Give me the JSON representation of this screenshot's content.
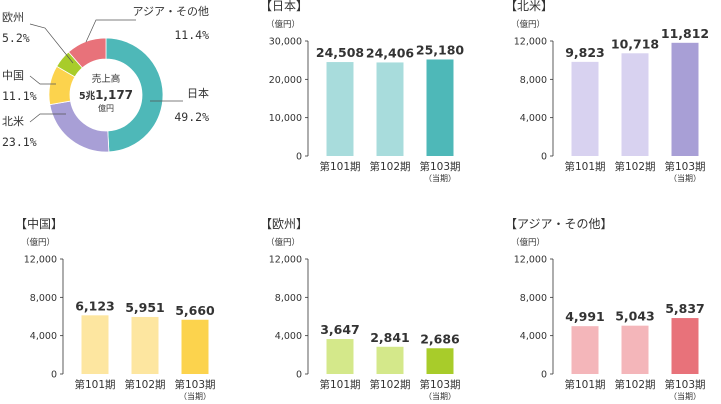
{
  "donut": {
    "center_label": "売上高",
    "center_value_prefix": "5兆",
    "center_value": "1,177",
    "center_unit": "億円",
    "chart_data": {
      "type": "pie",
      "categories": [
        "日本",
        "北米",
        "中国",
        "欧州",
        "アジア・その他"
      ],
      "values": [
        49.2,
        23.1,
        11.1,
        5.2,
        11.4
      ],
      "value_labels": [
        "49.2%",
        "23.1%",
        "11.1%",
        "5.2%",
        "11.4%"
      ],
      "colors": [
        "#4eb8b8",
        "#a89fd6",
        "#fcd34d",
        "#a8cc2a",
        "#e8727a"
      ]
    }
  },
  "panels": [
    {
      "title": "【日本】",
      "unit": "（億円）",
      "chart_data": {
        "type": "bar",
        "categories": [
          "第101期",
          "第102期",
          "第103期"
        ],
        "category_sub": [
          "",
          "",
          "（当期）"
        ],
        "values": [
          24508,
          24406,
          25180
        ],
        "value_labels": [
          "24,508",
          "24,406",
          "25,180"
        ],
        "ylim": [
          0,
          30000
        ],
        "yticks": [
          0,
          10000,
          20000,
          30000
        ],
        "ytick_labels": [
          "0",
          "10,000",
          "20,000",
          "30,000"
        ],
        "colors": [
          "#a8dcdc",
          "#a8dcdc",
          "#4eb8b8"
        ]
      }
    },
    {
      "title": "【北米】",
      "unit": "（億円）",
      "chart_data": {
        "type": "bar",
        "categories": [
          "第101期",
          "第102期",
          "第103期"
        ],
        "category_sub": [
          "",
          "",
          "（当期）"
        ],
        "values": [
          9823,
          10718,
          11812
        ],
        "value_labels": [
          "9,823",
          "10,718",
          "11,812"
        ],
        "ylim": [
          0,
          12000
        ],
        "yticks": [
          0,
          4000,
          8000,
          12000
        ],
        "ytick_labels": [
          "0",
          "4,000",
          "8,000",
          "12,000"
        ],
        "colors": [
          "#d8d2f0",
          "#d8d2f0",
          "#a89fd6"
        ]
      }
    },
    {
      "title": "【中国】",
      "unit": "（億円）",
      "chart_data": {
        "type": "bar",
        "categories": [
          "第101期",
          "第102期",
          "第103期"
        ],
        "category_sub": [
          "",
          "",
          "（当期）"
        ],
        "values": [
          6123,
          5951,
          5660
        ],
        "value_labels": [
          "6,123",
          "5,951",
          "5,660"
        ],
        "ylim": [
          0,
          12000
        ],
        "yticks": [
          0,
          4000,
          8000,
          12000
        ],
        "ytick_labels": [
          "0",
          "4,000",
          "8,000",
          "12,000"
        ],
        "colors": [
          "#fde6a0",
          "#fde6a0",
          "#fcd34d"
        ]
      }
    },
    {
      "title": "【欧州】",
      "unit": "（億円）",
      "chart_data": {
        "type": "bar",
        "categories": [
          "第101期",
          "第102期",
          "第103期"
        ],
        "category_sub": [
          "",
          "",
          "（当期）"
        ],
        "values": [
          3647,
          2841,
          2686
        ],
        "value_labels": [
          "3,647",
          "2,841",
          "2,686"
        ],
        "ylim": [
          0,
          12000
        ],
        "yticks": [
          0,
          4000,
          8000,
          12000
        ],
        "ytick_labels": [
          "0",
          "4,000",
          "8,000",
          "12,000"
        ],
        "colors": [
          "#d4e88a",
          "#d4e88a",
          "#a8cc2a"
        ]
      }
    },
    {
      "title": "【アジア・その他】",
      "unit": "（億円）",
      "chart_data": {
        "type": "bar",
        "categories": [
          "第101期",
          "第102期",
          "第103期"
        ],
        "category_sub": [
          "",
          "",
          "（当期）"
        ],
        "values": [
          4991,
          5043,
          5837
        ],
        "value_labels": [
          "4,991",
          "5,043",
          "5,837"
        ],
        "ylim": [
          0,
          12000
        ],
        "yticks": [
          0,
          4000,
          8000,
          12000
        ],
        "ytick_labels": [
          "0",
          "4,000",
          "8,000",
          "12,000"
        ],
        "colors": [
          "#f4b6ba",
          "#f4b6ba",
          "#e8727a"
        ]
      }
    }
  ]
}
